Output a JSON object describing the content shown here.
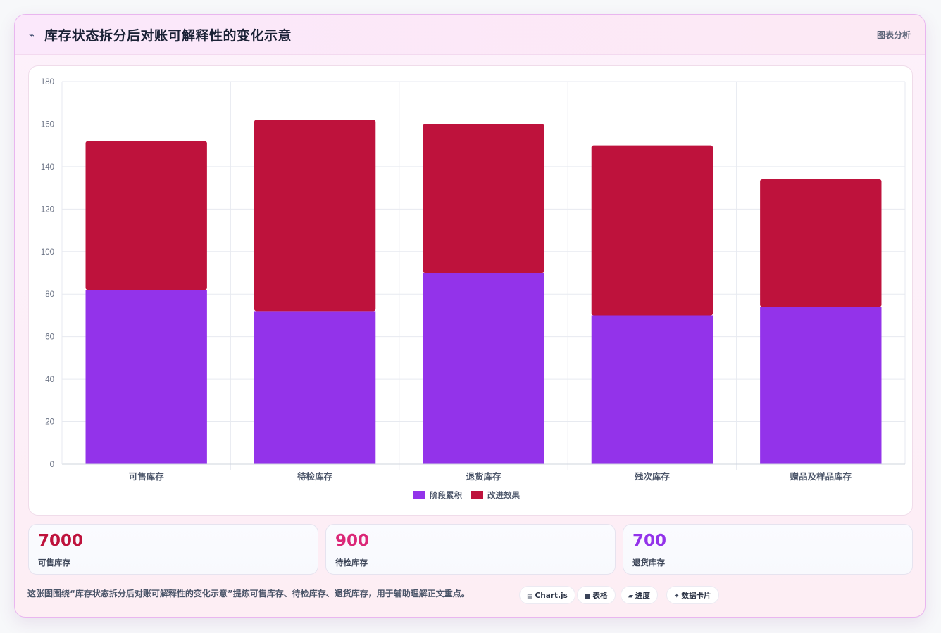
{
  "header": {
    "icon": "chart-line-icon",
    "title": "库存状态拆分后对账可解释性的变化示意",
    "tag": "图表分析"
  },
  "colors": {
    "series1": "#9333ea",
    "series2": "#be123c",
    "stat1": "#be123c",
    "stat2": "#db2777",
    "stat3": "#9333ea"
  },
  "chart_data": {
    "type": "bar",
    "stacked": true,
    "categories": [
      "可售库存",
      "待检库存",
      "退货库存",
      "残次库存",
      "赠品及样品库存"
    ],
    "series": [
      {
        "name": "阶段累积",
        "values": [
          82,
          72,
          90,
          70,
          74
        ]
      },
      {
        "name": "改进效果",
        "values": [
          70,
          90,
          70,
          80,
          60
        ]
      }
    ],
    "ylim": [
      0,
      180
    ],
    "yticks": [
      0,
      20,
      40,
      60,
      80,
      100,
      120,
      140,
      160,
      180
    ],
    "grid": true,
    "legend": "bottom-center"
  },
  "stats": [
    {
      "value": "7000",
      "label": "可售库存"
    },
    {
      "value": "900",
      "label": "待检库存"
    },
    {
      "value": "700",
      "label": "退货库存"
    }
  ],
  "caption": "这张图围绕“库存状态拆分后对账可解释性的变化示意”提炼可售库存、待检库存、退货库存，用于辅助理解正文重点。",
  "pills": [
    {
      "icon": "chart-icon",
      "glyph": "▤",
      "label": "Chart.js"
    },
    {
      "icon": "table-icon",
      "glyph": "■",
      "label": "表格"
    },
    {
      "icon": "progress-icon",
      "glyph": "▰",
      "label": "进度"
    },
    {
      "icon": "sparkle-icon",
      "glyph": "✦",
      "label": "数据卡片"
    }
  ]
}
